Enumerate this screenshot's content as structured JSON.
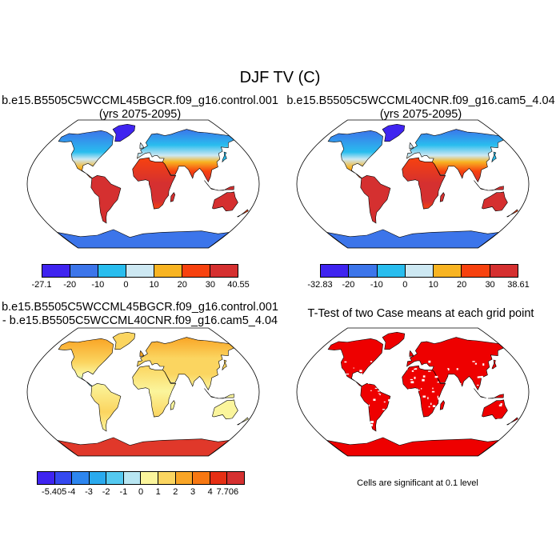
{
  "figure": {
    "title": "DJF TV (C)"
  },
  "panels": [
    {
      "title_line1": "b.e15.B5505C5WCCML45BGCR.f09_g16.control.001",
      "title_line2": "(yrs 2075-2095)",
      "field": "temperature",
      "colorbar": {
        "colors": [
          "#3f24f0",
          "#3c75ea",
          "#29bdee",
          "#cde8f2",
          "#f8b422",
          "#f7420f",
          "#d53030"
        ],
        "labels": [
          "-27.1",
          "-20",
          "-10",
          "0",
          "10",
          "20",
          "30",
          "40.55"
        ]
      }
    },
    {
      "title_line1": "b.e15.B5505C5WCCML40CNR.f09_g16.cam5_4.04",
      "title_line2": "(yrs 2075-2095)",
      "field": "temperature",
      "colorbar": {
        "colors": [
          "#3f24f0",
          "#3c75ea",
          "#29bdee",
          "#cde8f2",
          "#f8b422",
          "#f7420f",
          "#d53030"
        ],
        "labels": [
          "-32.83",
          "-20",
          "-10",
          "0",
          "10",
          "20",
          "30",
          "38.61"
        ]
      }
    },
    {
      "title_line1": "b.e15.B5505C5WCCML45BGCR.f09_g16.control.001",
      "title_line2": "- b.e15.B5505C5WCCML40CNR.f09_g16.cam5_4.04",
      "field": "difference",
      "colorbar": {
        "colors": [
          "#3f24f0",
          "#3549f0",
          "#2d86ef",
          "#2aaaee",
          "#54c9f0",
          "#b8e6f2",
          "#fbf59c",
          "#fbd560",
          "#f9a526",
          "#f77812",
          "#e62f14",
          "#d53030"
        ],
        "labels": [
          "-5.405",
          "-4",
          "-3",
          "-2",
          "-1",
          "0",
          "1",
          "2",
          "3",
          "4",
          "7.706"
        ]
      }
    },
    {
      "title_line1": "T-Test of two Case means at each grid point",
      "field": "significance",
      "note": "Cells are significant at 0.1 level"
    }
  ]
}
